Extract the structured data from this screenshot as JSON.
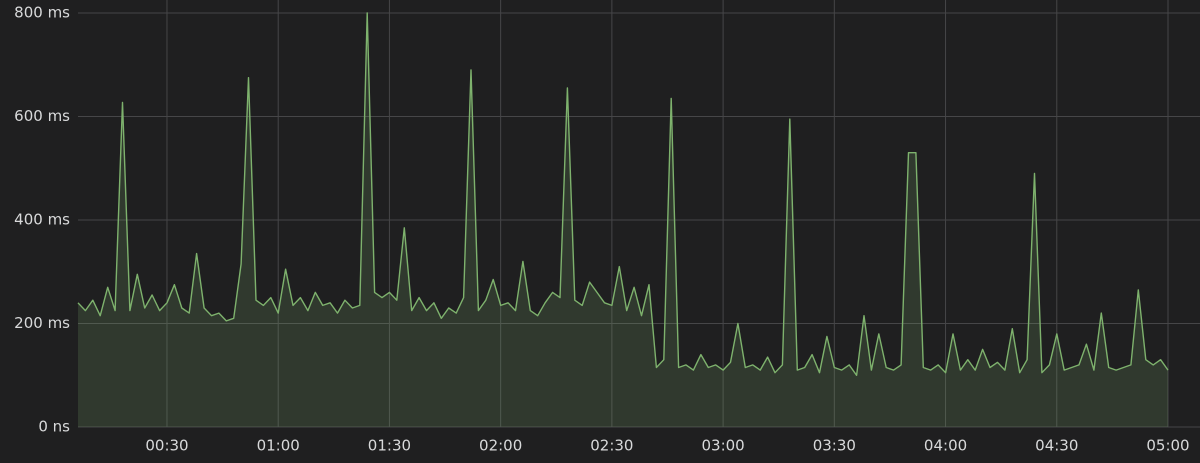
{
  "chart_data": {
    "type": "line",
    "x": [
      6,
      8,
      10,
      12,
      14,
      16,
      18,
      20,
      22,
      24,
      26,
      28,
      30,
      32,
      34,
      36,
      38,
      40,
      42,
      44,
      46,
      48,
      50,
      52,
      54,
      56,
      58,
      60,
      62,
      64,
      66,
      68,
      70,
      72,
      74,
      76,
      78,
      80,
      82,
      84,
      86,
      88,
      90,
      92,
      94,
      96,
      98,
      100,
      102,
      104,
      106,
      108,
      110,
      112,
      114,
      116,
      118,
      120,
      122,
      124,
      126,
      128,
      130,
      132,
      134,
      136,
      138,
      140,
      142,
      144,
      146,
      148,
      150,
      152,
      154,
      156,
      158,
      160,
      162,
      164,
      166,
      168,
      170,
      172,
      174,
      176,
      178,
      180,
      182,
      184,
      186,
      188,
      190,
      192,
      194,
      196,
      198,
      200,
      202,
      204,
      206,
      208,
      210,
      212,
      214,
      216,
      218,
      220,
      222,
      224,
      226,
      228,
      230,
      232,
      234,
      236,
      238,
      240,
      242,
      244,
      246,
      248,
      250,
      252,
      254,
      256,
      258,
      260,
      262,
      264,
      266,
      268,
      270,
      272,
      274,
      276,
      278,
      280,
      282,
      284,
      286,
      288,
      290,
      292,
      294,
      296,
      298,
      300
    ],
    "series": [
      {
        "color": "#7eb26d",
        "fill": true,
        "values": [
          240,
          225,
          245,
          215,
          270,
          225,
          627,
          225,
          295,
          230,
          255,
          225,
          240,
          275,
          230,
          220,
          335,
          230,
          215,
          220,
          205,
          210,
          315,
          675,
          245,
          235,
          250,
          220,
          305,
          235,
          250,
          225,
          260,
          235,
          240,
          220,
          245,
          230,
          235,
          800,
          260,
          250,
          260,
          245,
          385,
          225,
          250,
          225,
          240,
          210,
          230,
          220,
          250,
          690,
          225,
          245,
          285,
          235,
          240,
          225,
          320,
          225,
          215,
          240,
          260,
          250,
          655,
          245,
          235,
          280,
          260,
          240,
          235,
          310,
          225,
          270,
          215,
          275,
          115,
          130,
          635,
          115,
          120,
          110,
          140,
          115,
          120,
          110,
          125,
          200,
          115,
          120,
          110,
          135,
          105,
          120,
          595,
          110,
          115,
          140,
          105,
          175,
          115,
          110,
          120,
          100,
          215,
          110,
          180,
          115,
          110,
          120,
          530,
          530,
          115,
          110,
          120,
          105,
          180,
          110,
          130,
          110,
          150,
          115,
          125,
          110,
          190,
          105,
          130,
          490,
          105,
          120,
          180,
          110,
          115,
          120,
          160,
          110,
          220,
          115,
          110,
          115,
          120,
          265,
          130,
          120,
          130,
          110
        ]
      }
    ],
    "xlim": [
      6,
      300
    ],
    "xticks": [
      {
        "value": 30,
        "label": "00:30"
      },
      {
        "value": 60,
        "label": "01:00"
      },
      {
        "value": 90,
        "label": "01:30"
      },
      {
        "value": 120,
        "label": "02:00"
      },
      {
        "value": 150,
        "label": "02:30"
      },
      {
        "value": 180,
        "label": "03:00"
      },
      {
        "value": 210,
        "label": "03:30"
      },
      {
        "value": 240,
        "label": "04:00"
      },
      {
        "value": 270,
        "label": "04:30"
      },
      {
        "value": 300,
        "label": "05:00"
      }
    ],
    "ylim": [
      0,
      800
    ],
    "yticks": [
      {
        "value": 0,
        "label": "0 ns"
      },
      {
        "value": 200,
        "label": "200 ms"
      },
      {
        "value": 400,
        "label": "400 ms"
      },
      {
        "value": 600,
        "label": "600 ms"
      },
      {
        "value": 800,
        "label": "800 ms"
      }
    ],
    "grid": true
  }
}
